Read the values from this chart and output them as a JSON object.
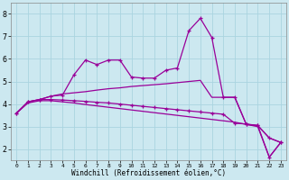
{
  "xlabel": "Windchill (Refroidissement éolien,°C)",
  "bg_color": "#cce8f0",
  "grid_color": "#aad4e0",
  "line_color": "#990099",
  "xlim": [
    -0.5,
    23.5
  ],
  "ylim": [
    1.5,
    8.5
  ],
  "yticks": [
    2,
    3,
    4,
    5,
    6,
    7,
    8
  ],
  "xticks": [
    0,
    1,
    2,
    3,
    4,
    5,
    6,
    7,
    8,
    9,
    10,
    11,
    12,
    13,
    14,
    15,
    16,
    17,
    18,
    19,
    20,
    21,
    22,
    23
  ],
  "series": [
    {
      "x": [
        0,
        1,
        2,
        3,
        4,
        5,
        6,
        7,
        8,
        9,
        10,
        11,
        12,
        13,
        14,
        15,
        16,
        17,
        18,
        19,
        20,
        21,
        22,
        23
      ],
      "y": [
        3.6,
        4.1,
        4.2,
        4.35,
        4.4,
        5.3,
        5.95,
        5.75,
        5.95,
        5.95,
        5.2,
        5.15,
        5.15,
        5.5,
        5.6,
        7.25,
        7.8,
        6.95,
        4.3,
        4.3,
        3.1,
        3.05,
        1.65,
        2.3
      ],
      "marker": true
    },
    {
      "x": [
        0,
        1,
        2,
        3,
        4,
        5,
        6,
        7,
        8,
        9,
        10,
        11,
        12,
        13,
        14,
        15,
        16,
        17,
        18,
        19,
        20,
        21,
        22,
        23
      ],
      "y": [
        3.6,
        4.1,
        4.2,
        4.35,
        4.45,
        4.5,
        4.55,
        4.62,
        4.68,
        4.72,
        4.78,
        4.82,
        4.86,
        4.9,
        4.95,
        5.0,
        5.05,
        4.3,
        4.3,
        4.3,
        3.1,
        3.05,
        2.5,
        2.3
      ],
      "marker": false
    },
    {
      "x": [
        0,
        1,
        2,
        3,
        4,
        5,
        6,
        7,
        8,
        9,
        10,
        11,
        12,
        13,
        14,
        15,
        16,
        17,
        18,
        19,
        20,
        21,
        22,
        23
      ],
      "y": [
        3.6,
        4.1,
        4.2,
        4.2,
        4.18,
        4.15,
        4.12,
        4.08,
        4.05,
        4.0,
        3.95,
        3.9,
        3.85,
        3.8,
        3.75,
        3.7,
        3.65,
        3.6,
        3.55,
        3.15,
        3.12,
        3.05,
        2.5,
        2.3
      ],
      "marker": true
    },
    {
      "x": [
        0,
        1,
        2,
        3,
        4,
        5,
        6,
        7,
        8,
        9,
        10,
        11,
        12,
        13,
        14,
        15,
        16,
        17,
        18,
        19,
        20,
        21,
        22,
        23
      ],
      "y": [
        3.6,
        4.05,
        4.15,
        4.15,
        4.1,
        4.05,
        3.98,
        3.92,
        3.86,
        3.8,
        3.74,
        3.68,
        3.62,
        3.56,
        3.5,
        3.44,
        3.38,
        3.32,
        3.26,
        3.2,
        3.1,
        3.0,
        1.65,
        2.3
      ],
      "marker": false
    }
  ]
}
